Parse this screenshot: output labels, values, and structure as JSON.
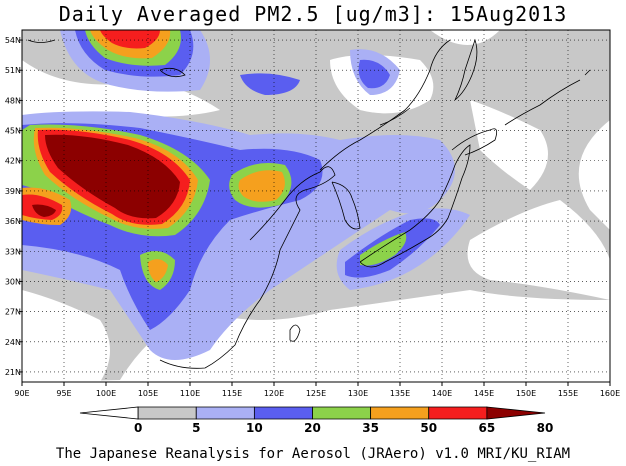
{
  "title": "Daily Averaged PM2.5 [ug/m3]: 15Aug2013",
  "footer": "The Japanese Reanalysis for Aerosol (JRAero) v1.0 MRI/KU_RIAM",
  "map": {
    "lon_range": [
      90,
      160
    ],
    "lat_range": [
      20,
      55
    ],
    "lon_ticks": [
      "90E",
      "95E",
      "100E",
      "105E",
      "110E",
      "115E",
      "120E",
      "125E",
      "130E",
      "135E",
      "140E",
      "145E",
      "150E",
      "155E",
      "160E"
    ],
    "lat_ticks": [
      "21N",
      "24N",
      "27N",
      "30N",
      "33N",
      "36N",
      "39N",
      "42N",
      "45N",
      "48N",
      "51N",
      "54N"
    ]
  },
  "colorbar": {
    "levels": [
      "0",
      "5",
      "10",
      "20",
      "35",
      "50",
      "65",
      "80"
    ],
    "colors": [
      "#ffffff",
      "#c8c8c8",
      "#aab0f5",
      "#5a5ef0",
      "#8cd24a",
      "#f5a01e",
      "#f51e1e",
      "#8c0000"
    ]
  }
}
